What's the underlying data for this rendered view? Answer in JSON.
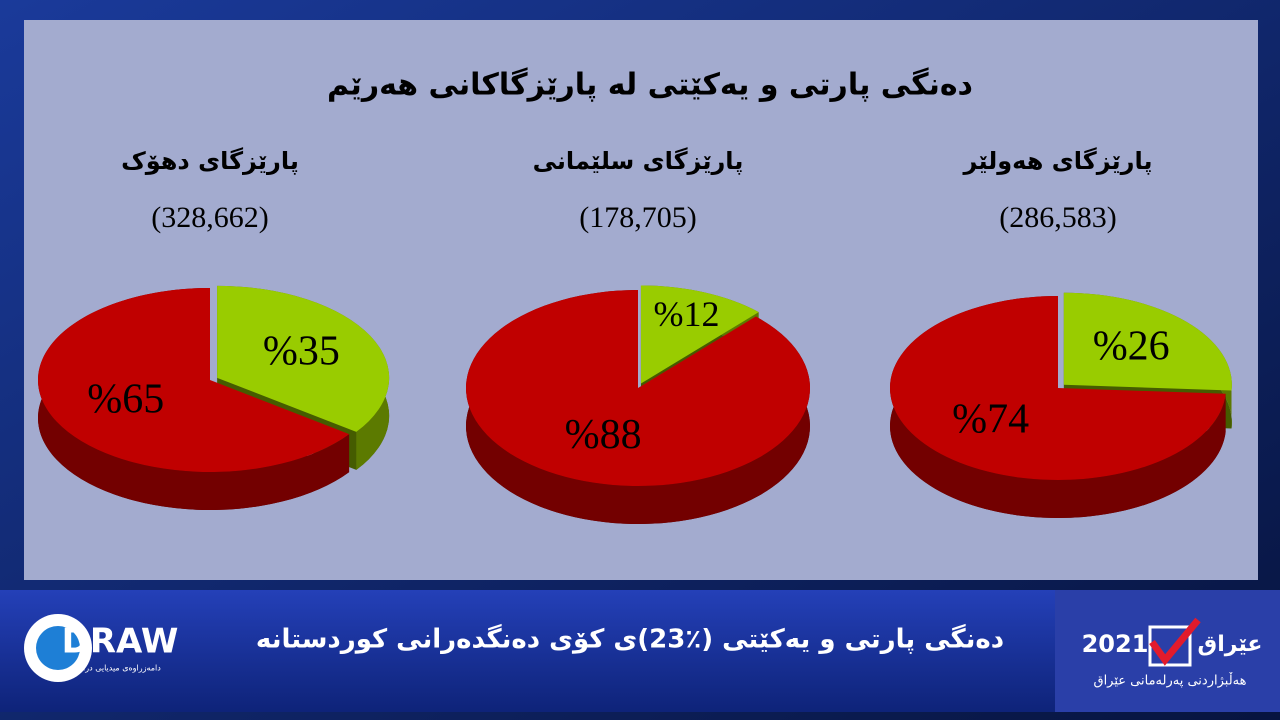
{
  "header": {
    "title": "دەنگی پارتی و یەکێتی لە پارێزگاکانی هەرێم"
  },
  "chart_data": [
    {
      "type": "pie",
      "title": "پارێزگای دهۆک",
      "subtitle": "(328,662)",
      "values": [
        35,
        65
      ],
      "value_labels": [
        "%35",
        "%65"
      ],
      "colors": [
        "#99cc00",
        "#c00000"
      ]
    },
    {
      "type": "pie",
      "title": "پارێزگای سلێمانی",
      "subtitle": "(178,705)",
      "values": [
        12,
        88
      ],
      "value_labels": [
        "%12",
        "%88"
      ],
      "colors": [
        "#99cc00",
        "#c00000"
      ]
    },
    {
      "type": "pie",
      "title": "پارێزگای هەولێر",
      "subtitle": "(286,583)",
      "values": [
        26,
        74
      ],
      "value_labels": [
        "%26",
        "%74"
      ],
      "colors": [
        "#99cc00",
        "#c00000"
      ]
    }
  ],
  "footer": {
    "headline": "دەنگی پارتی و یەکێتی (٪23)ی کۆی دەنگدەرانی کوردستانە",
    "logo": "DRAW",
    "logo_tagline": "دامەزراوەی میدیایی دراو",
    "badge_year": "2021",
    "badge_name": "عێراق",
    "badge_caption": "هەڵبژاردنی پەرلەمانی عێراق"
  }
}
